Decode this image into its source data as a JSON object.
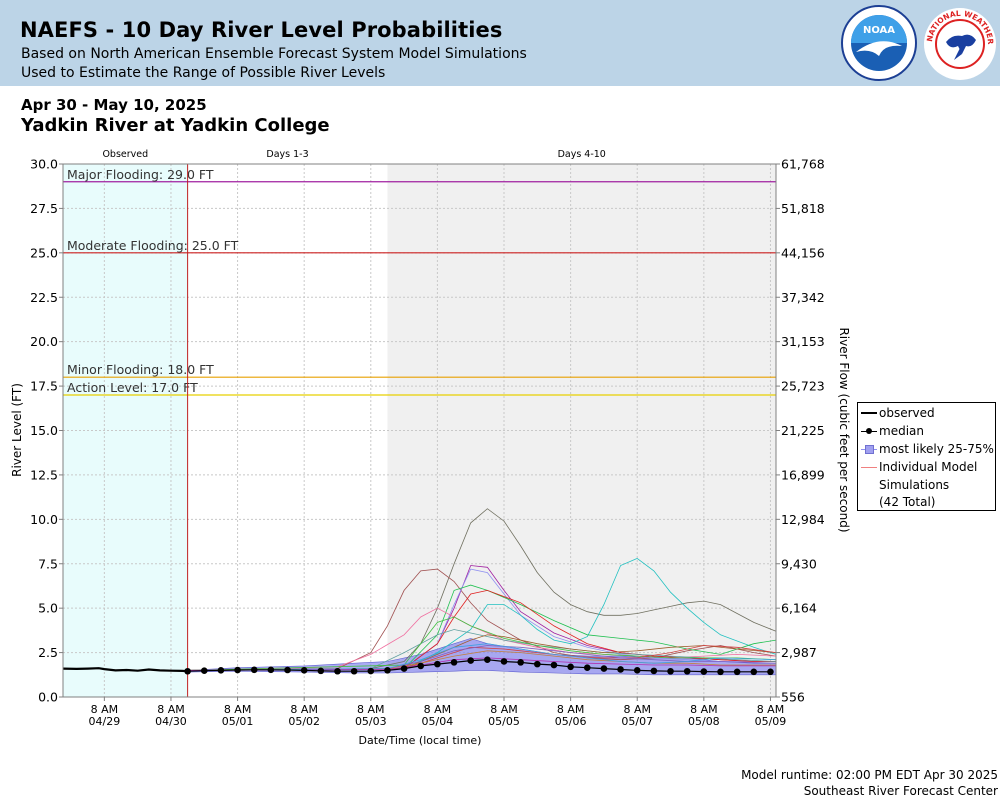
{
  "header": {
    "title": "NAEFS - 10 Day River Level Probabilities",
    "subtitle1": "Based on North American Ensemble Forecast System Model Simulations",
    "subtitle2": "Used to Estimate the Range of Possible River Levels",
    "noaa_logo_text": "NOAA",
    "nws_logo_text": "NATIONAL WEATHER SERVICE"
  },
  "date_range": "Apr 30 - May 10, 2025",
  "location": "Yadkin River at Yadkin College",
  "legend": {
    "observed": "observed",
    "median": "median",
    "likely": "most likely 25-75%",
    "individual_line1": "Individual Model",
    "individual_line2": "Simulations",
    "individual_line3": "(42 Total)"
  },
  "footer": {
    "runtime": "Model runtime: 02:00 PM EDT Apr 30 2025",
    "center": "Southeast River Forecast Center"
  },
  "colors": {
    "header_bg": "#bcd4e7",
    "observed_bg": "#e8fcfc",
    "days4_10_bg": "#f0f0f0",
    "major": "#a020a0",
    "moderate": "#cc2020",
    "minor": "#e8a000",
    "action": "#e8d000",
    "band": "#8080f0",
    "median": "#000000"
  },
  "chart_data": {
    "type": "line",
    "section_labels": [
      "Observed",
      "Days 1-3",
      "Days 4-10"
    ],
    "xlabel": "Date/Time (local time)",
    "ylabel": "River Level (FT)",
    "y2label": "River Flow (cubic feet per second)",
    "ylim": [
      0,
      30
    ],
    "y_ticks": [
      "0.0",
      "2.5",
      "5.0",
      "7.5",
      "10.0",
      "12.5",
      "15.0",
      "17.5",
      "20.0",
      "22.5",
      "25.0",
      "27.5",
      "30.0"
    ],
    "y2_ticks": [
      "556",
      "2,987",
      "6,164",
      "9,430",
      "12,984",
      "16,899",
      "21,225",
      "25,723",
      "31,153",
      "37,342",
      "44,156",
      "51,818",
      "61,768"
    ],
    "x_range_hours_from_0800_0429": [
      -14.9,
      242
    ],
    "x_ticks": [
      {
        "top": "8 AM",
        "bottom": "04/29"
      },
      {
        "top": "8 AM",
        "bottom": "04/30"
      },
      {
        "top": "8 AM",
        "bottom": "05/01"
      },
      {
        "top": "8 AM",
        "bottom": "05/02"
      },
      {
        "top": "8 AM",
        "bottom": "05/03"
      },
      {
        "top": "8 AM",
        "bottom": "05/04"
      },
      {
        "top": "8 AM",
        "bottom": "05/05"
      },
      {
        "top": "8 AM",
        "bottom": "05/06"
      },
      {
        "top": "8 AM",
        "bottom": "05/07"
      },
      {
        "top": "8 AM",
        "bottom": "05/08"
      },
      {
        "top": "8 AM",
        "bottom": "05/09"
      }
    ],
    "forecast_start_hour": 30,
    "days4_10_start_hour": 102,
    "thresholds": [
      {
        "name": "Major Flooding",
        "label": "Major Flooding: 29.0 FT",
        "value": 29.0
      },
      {
        "name": "Moderate Flooding",
        "label": "Moderate Flooding: 25.0 FT",
        "value": 25.0
      },
      {
        "name": "Minor Flooding",
        "label": "Minor Flooding: 18.0 FT",
        "value": 18.0
      },
      {
        "name": "Action Level",
        "label": "Action Level: 17.0 FT",
        "value": 17.0
      }
    ],
    "observed": {
      "x": [
        -14.9,
        -10,
        -6,
        -2,
        0,
        4,
        8,
        12,
        16,
        20,
        24,
        28,
        30
      ],
      "y": [
        1.6,
        1.58,
        1.6,
        1.62,
        1.57,
        1.5,
        1.52,
        1.48,
        1.55,
        1.5,
        1.48,
        1.47,
        1.45
      ]
    },
    "median": {
      "x": [
        30,
        36,
        42,
        48,
        54,
        60,
        66,
        72,
        78,
        84,
        90,
        96,
        102,
        108,
        114,
        120,
        126,
        132,
        138,
        144,
        150,
        156,
        162,
        168,
        174,
        180,
        186,
        192,
        198,
        204,
        210,
        216,
        222,
        228,
        234,
        240
      ],
      "y": [
        1.45,
        1.48,
        1.5,
        1.52,
        1.53,
        1.53,
        1.52,
        1.5,
        1.47,
        1.45,
        1.45,
        1.46,
        1.5,
        1.6,
        1.75,
        1.85,
        1.95,
        2.05,
        2.1,
        2.0,
        1.95,
        1.85,
        1.8,
        1.7,
        1.65,
        1.6,
        1.55,
        1.5,
        1.47,
        1.45,
        1.45,
        1.43,
        1.42,
        1.42,
        1.42,
        1.42
      ]
    },
    "likely_band": {
      "x": [
        30,
        48,
        72,
        90,
        102,
        114,
        126,
        132,
        138,
        150,
        162,
        174,
        186,
        198,
        210,
        222,
        234,
        242
      ],
      "low": [
        1.4,
        1.45,
        1.4,
        1.35,
        1.35,
        1.4,
        1.45,
        1.5,
        1.5,
        1.4,
        1.35,
        1.3,
        1.3,
        1.25,
        1.25,
        1.25,
        1.25,
        1.25
      ],
      "high": [
        1.5,
        1.65,
        1.75,
        1.9,
        2.0,
        2.4,
        3.0,
        3.3,
        3.0,
        2.7,
        2.4,
        2.3,
        2.3,
        2.2,
        2.2,
        2.0,
        1.9,
        1.9
      ]
    },
    "individual_simulations": [
      {
        "color": "#707060",
        "x": [
          30,
          96,
          108,
          114,
          120,
          126,
          132,
          138,
          144,
          150,
          156,
          162,
          168,
          174,
          180,
          186,
          192,
          198,
          204,
          210,
          216,
          222,
          234,
          242
        ],
        "y": [
          1.5,
          1.6,
          2.0,
          3.0,
          5.0,
          7.5,
          9.8,
          10.6,
          9.9,
          8.5,
          7.0,
          5.9,
          5.2,
          4.8,
          4.6,
          4.6,
          4.7,
          4.9,
          5.1,
          5.3,
          5.4,
          5.2,
          4.2,
          3.7
        ]
      },
      {
        "color": "#a05050",
        "x": [
          30,
          84,
          96,
          102,
          108,
          114,
          120,
          126,
          132,
          138,
          150,
          162,
          174,
          186,
          198,
          210,
          222,
          234,
          242
        ],
        "y": [
          1.5,
          1.6,
          2.5,
          4.0,
          6.0,
          7.1,
          7.2,
          6.5,
          5.3,
          4.3,
          3.2,
          2.5,
          2.2,
          2.1,
          2.2,
          2.6,
          2.9,
          2.5,
          2.3
        ]
      },
      {
        "color": "#a020a0",
        "x": [
          30,
          108,
          120,
          126,
          132,
          138,
          144,
          150,
          162,
          174,
          186,
          198,
          210,
          222,
          234,
          242
        ],
        "y": [
          1.5,
          1.6,
          3.0,
          5.0,
          7.4,
          7.3,
          6.0,
          4.8,
          3.6,
          2.9,
          2.5,
          2.3,
          2.2,
          2.1,
          2.0,
          2.0
        ]
      },
      {
        "color": "#9090f0",
        "x": [
          30,
          108,
          120,
          126,
          132,
          138,
          144,
          150,
          162,
          174,
          186,
          198,
          210,
          222,
          234,
          242
        ],
        "y": [
          1.5,
          1.6,
          3.0,
          5.2,
          7.2,
          7.0,
          5.8,
          4.6,
          3.4,
          2.8,
          2.4,
          2.2,
          2.1,
          2.0,
          2.0,
          2.0
        ]
      },
      {
        "color": "#20c0c0",
        "x": [
          30,
          108,
          120,
          132,
          138,
          144,
          150,
          156,
          162,
          168,
          174,
          180,
          186,
          192,
          198,
          204,
          210,
          216,
          222,
          234,
          242
        ],
        "y": [
          1.5,
          1.6,
          2.5,
          3.8,
          5.2,
          5.2,
          4.6,
          3.8,
          3.2,
          3.0,
          3.4,
          5.2,
          7.4,
          7.8,
          7.1,
          5.9,
          5.0,
          4.2,
          3.5,
          2.8,
          2.4
        ]
      },
      {
        "color": "#20c050",
        "x": [
          30,
          108,
          120,
          126,
          132,
          138,
          150,
          162,
          174,
          186,
          198,
          210,
          222,
          234,
          242
        ],
        "y": [
          1.5,
          1.6,
          3.5,
          6.0,
          6.3,
          6.0,
          5.2,
          4.3,
          3.5,
          3.3,
          3.1,
          2.7,
          2.4,
          3.0,
          3.2
        ]
      },
      {
        "color": "#e02020",
        "x": [
          30,
          108,
          120,
          126,
          132,
          138,
          150,
          162,
          174,
          186,
          198,
          210,
          222,
          234,
          242
        ],
        "y": [
          1.5,
          1.6,
          3.0,
          4.5,
          5.8,
          6.0,
          5.3,
          4.0,
          3.0,
          2.5,
          2.3,
          2.2,
          2.1,
          2.0,
          2.0
        ]
      },
      {
        "color": "#f070a0",
        "x": [
          30,
          84,
          96,
          108,
          114,
          120,
          126,
          132,
          144,
          156,
          168,
          180,
          192,
          204,
          216,
          228,
          242
        ],
        "y": [
          1.5,
          1.7,
          2.4,
          3.5,
          4.5,
          5.0,
          4.5,
          4.0,
          3.2,
          2.8,
          2.5,
          2.4,
          2.3,
          2.2,
          2.3,
          2.4,
          2.3
        ]
      },
      {
        "color": "#60a0a0",
        "x": [
          30,
          96,
          108,
          120,
          126,
          132,
          144,
          156,
          168,
          180,
          192,
          204,
          216,
          228,
          242
        ],
        "y": [
          1.5,
          1.6,
          2.5,
          3.5,
          3.8,
          3.6,
          3.2,
          2.9,
          2.7,
          2.5,
          2.4,
          2.3,
          2.2,
          2.1,
          2.0
        ]
      },
      {
        "color": "#40c040",
        "x": [
          30,
          108,
          114,
          120,
          126,
          132,
          144,
          156,
          168,
          180,
          192,
          204,
          216,
          228,
          242
        ],
        "y": [
          1.5,
          1.8,
          3.0,
          4.2,
          4.5,
          4.0,
          3.3,
          2.9,
          2.6,
          2.4,
          2.3,
          2.2,
          2.2,
          2.2,
          2.1
        ]
      },
      {
        "color": "#a06030",
        "x": [
          30,
          108,
          120,
          132,
          138,
          144,
          156,
          168,
          180,
          192,
          204,
          216,
          228,
          242
        ],
        "y": [
          1.5,
          1.6,
          2.4,
          3.2,
          3.5,
          3.4,
          3.0,
          2.7,
          2.5,
          2.6,
          2.8,
          2.9,
          2.7,
          2.5
        ]
      },
      {
        "color": "#d04040",
        "x": [
          30,
          108,
          120,
          132,
          144,
          156,
          168,
          180,
          192,
          204,
          216,
          228,
          242
        ],
        "y": [
          1.5,
          1.6,
          2.2,
          2.8,
          2.7,
          2.5,
          2.3,
          2.2,
          2.2,
          2.5,
          2.9,
          2.8,
          2.5
        ]
      },
      {
        "color": "#8060c0",
        "x": [
          30,
          102,
          114,
          126,
          138,
          150,
          162,
          174,
          186,
          198,
          210,
          222,
          242
        ],
        "y": [
          1.5,
          1.6,
          2.0,
          2.6,
          2.9,
          2.8,
          2.6,
          2.4,
          2.2,
          2.1,
          2.0,
          2.0,
          1.9
        ]
      },
      {
        "color": "#c08040",
        "x": [
          30,
          102,
          114,
          126,
          138,
          150,
          162,
          174,
          186,
          198,
          210,
          222,
          242
        ],
        "y": [
          1.5,
          1.6,
          1.9,
          2.3,
          2.6,
          2.5,
          2.3,
          2.1,
          2.0,
          1.9,
          1.9,
          1.8,
          1.8
        ]
      },
      {
        "color": "#40a0e0",
        "x": [
          30,
          102,
          114,
          126,
          138,
          150,
          162,
          174,
          186,
          198,
          210,
          222,
          242
        ],
        "y": [
          1.5,
          1.6,
          2.1,
          2.8,
          3.0,
          2.7,
          2.4,
          2.2,
          2.0,
          1.9,
          2.0,
          2.2,
          2.1
        ]
      },
      {
        "color": "#b030b0",
        "x": [
          30,
          102,
          114,
          126,
          138,
          150,
          162,
          174,
          186,
          198,
          210,
          222,
          242
        ],
        "y": [
          1.5,
          1.55,
          1.8,
          2.1,
          2.2,
          2.1,
          2.0,
          1.9,
          1.85,
          1.8,
          1.8,
          1.75,
          1.75
        ]
      }
    ]
  }
}
